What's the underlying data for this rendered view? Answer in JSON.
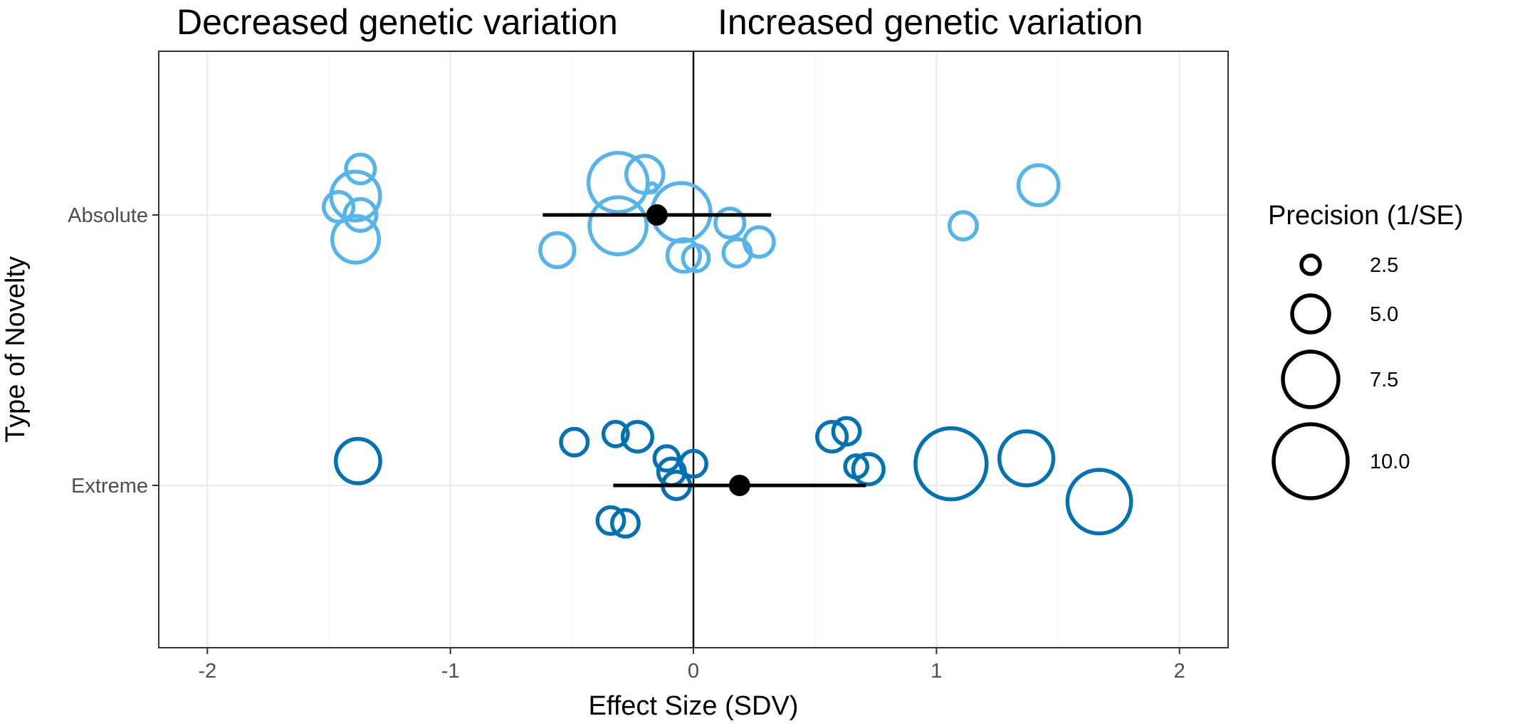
{
  "chart_data": {
    "type": "scatter",
    "title": "",
    "top_labels": {
      "left": "Decreased genetic variation",
      "right": "Increased genetic variation"
    },
    "xlabel": "Effect Size (SDV)",
    "ylabel": "Type of Novelty",
    "xlim": [
      -2.2,
      2.2
    ],
    "x_ticks": [
      -2,
      -1,
      0,
      1,
      2
    ],
    "x_tick_labels": [
      "-2",
      "-1",
      "0",
      "1",
      "2"
    ],
    "categories": [
      "Absolute",
      "Extreme"
    ],
    "reference_line_x": 0,
    "grid": true,
    "series": [
      {
        "name": "Absolute",
        "color": "#56B4E9",
        "points": [
          {
            "x": -1.37,
            "offset": 0.17,
            "precision": 3.9
          },
          {
            "x": -1.39,
            "offset": 0.07,
            "precision": 6.6
          },
          {
            "x": -1.46,
            "offset": 0.03,
            "precision": 4.0
          },
          {
            "x": -1.37,
            "offset": 0.0,
            "precision": 4.3
          },
          {
            "x": -1.39,
            "offset": -0.09,
            "precision": 6.3
          },
          {
            "x": -0.31,
            "offset": 0.12,
            "precision": 8.0
          },
          {
            "x": -0.2,
            "offset": 0.15,
            "precision": 5.0
          },
          {
            "x": -0.17,
            "offset": 0.1,
            "precision": 1.2
          },
          {
            "x": -0.31,
            "offset": -0.04,
            "precision": 7.7
          },
          {
            "x": -0.05,
            "offset": 0.01,
            "precision": 7.9
          },
          {
            "x": -0.56,
            "offset": -0.13,
            "precision": 4.6
          },
          {
            "x": 0.15,
            "offset": -0.03,
            "precision": 3.9
          },
          {
            "x": 0.27,
            "offset": -0.1,
            "precision": 4.0
          },
          {
            "x": 0.18,
            "offset": -0.14,
            "precision": 3.7
          },
          {
            "x": -0.04,
            "offset": -0.15,
            "precision": 4.4
          },
          {
            "x": 0.01,
            "offset": -0.16,
            "precision": 3.5
          },
          {
            "x": 1.11,
            "offset": -0.04,
            "precision": 3.7
          },
          {
            "x": 1.42,
            "offset": 0.11,
            "precision": 5.4
          }
        ],
        "mean": {
          "x": -0.15,
          "ci": [
            -0.62,
            0.32
          ]
        }
      },
      {
        "name": "Extreme",
        "color": "#0072B2",
        "points": [
          {
            "x": -1.38,
            "offset": 0.09,
            "precision": 6.0
          },
          {
            "x": -0.49,
            "offset": 0.16,
            "precision": 3.6
          },
          {
            "x": -0.32,
            "offset": 0.19,
            "precision": 3.3
          },
          {
            "x": -0.23,
            "offset": 0.18,
            "precision": 4.0
          },
          {
            "x": -0.11,
            "offset": 0.1,
            "precision": 3.3
          },
          {
            "x": 0.0,
            "offset": 0.08,
            "precision": 3.5
          },
          {
            "x": -0.09,
            "offset": 0.05,
            "precision": 3.6
          },
          {
            "x": -0.07,
            "offset": 0.0,
            "precision": 3.7
          },
          {
            "x": -0.34,
            "offset": -0.13,
            "precision": 3.6
          },
          {
            "x": -0.28,
            "offset": -0.14,
            "precision": 3.6
          },
          {
            "x": 0.57,
            "offset": 0.18,
            "precision": 4.0
          },
          {
            "x": 0.63,
            "offset": 0.2,
            "precision": 3.6
          },
          {
            "x": 0.67,
            "offset": 0.07,
            "precision": 3.0
          },
          {
            "x": 0.72,
            "offset": 0.06,
            "precision": 4.1
          },
          {
            "x": 1.06,
            "offset": 0.08,
            "precision": 9.6
          },
          {
            "x": 1.37,
            "offset": 0.1,
            "precision": 7.3
          },
          {
            "x": 1.67,
            "offset": -0.06,
            "precision": 8.6
          }
        ],
        "mean": {
          "x": 0.19,
          "ci": [
            -0.33,
            0.71
          ]
        }
      }
    ],
    "legend": {
      "title": "Precision (1/SE)",
      "position": "right",
      "entries": [
        {
          "label": "2.5",
          "precision": 2.5
        },
        {
          "label": "5.0",
          "precision": 5.0
        },
        {
          "label": "7.5",
          "precision": 7.5
        },
        {
          "label": "10.0",
          "precision": 10.0
        }
      ]
    }
  }
}
